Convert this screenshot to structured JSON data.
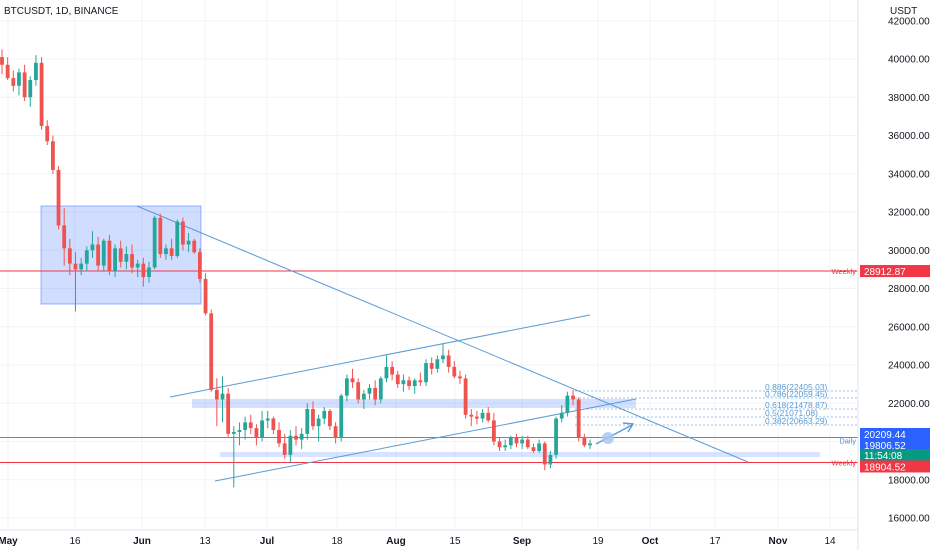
{
  "header": {
    "symbol": "BTCUSDT, 1D, BINANCE",
    "currency": "USDT"
  },
  "colors": {
    "up": "#26a69a",
    "down": "#ef5350",
    "line": "#5b9bd5",
    "box": "#2962ff",
    "red_line": "#f23645",
    "green_tag": "#089981",
    "blue_tag": "#2962ff"
  },
  "chart_data": {
    "type": "candlestick",
    "ylim": [
      15000,
      42800
    ],
    "x_labels": [
      "May",
      "16",
      "Jun",
      "13",
      "Jul",
      "18",
      "Aug",
      "15",
      "Sep",
      "19",
      "Oct",
      "17",
      "Nov",
      "14"
    ],
    "y_ticks": [
      "42000.00",
      "40000.00",
      "38000.00",
      "36000.00",
      "34000.00",
      "32000.00",
      "30000.00",
      "28000.00",
      "26000.00",
      "24000.00",
      "22000.00",
      "20000.00",
      "18000.00",
      "16000.00"
    ],
    "levels": [
      {
        "label": "Weekly",
        "value": "28912.87",
        "price": 28912.87
      },
      {
        "label": "Weekly",
        "value": "18904.52",
        "price": 18904.52
      },
      {
        "label": "Daily",
        "value": "20209.44",
        "price": 20209.44
      }
    ],
    "price_tags": {
      "current": "19806.52",
      "countdown": "11:54:08"
    },
    "fib_levels": [
      "0.886(22405.03)",
      "0.786(22059.45)",
      "0.618(21478.87)",
      "0.5(21071.08)",
      "0.382(20663.29)"
    ],
    "candles": [
      [
        40100,
        40500,
        39200,
        39700
      ],
      [
        39700,
        40100,
        38900,
        39000
      ],
      [
        39000,
        39400,
        38300,
        38600
      ],
      [
        38600,
        39500,
        38100,
        39300
      ],
      [
        39300,
        39700,
        37800,
        38000
      ],
      [
        38000,
        39100,
        37500,
        38900
      ],
      [
        38900,
        40200,
        38600,
        39800
      ],
      [
        39800,
        40100,
        36300,
        36500
      ],
      [
        36500,
        36800,
        35500,
        35700
      ],
      [
        35700,
        36000,
        34000,
        34200
      ],
      [
        34200,
        34400,
        31100,
        31300
      ],
      [
        31300,
        32200,
        29200,
        30100
      ],
      [
        30100,
        30600,
        28700,
        29300
      ],
      [
        29300,
        29900,
        26800,
        29000
      ],
      [
        29000,
        29600,
        28700,
        29300
      ],
      [
        29300,
        30200,
        28900,
        30000
      ],
      [
        30000,
        31000,
        29600,
        30300
      ],
      [
        30300,
        30700,
        28900,
        29200
      ],
      [
        29200,
        30600,
        28900,
        30500
      ],
      [
        30500,
        30800,
        28700,
        28900
      ],
      [
        28900,
        30300,
        28600,
        30100
      ],
      [
        30100,
        30500,
        29100,
        29400
      ],
      [
        29400,
        30200,
        29000,
        29800
      ],
      [
        29800,
        30300,
        28800,
        29100
      ],
      [
        29100,
        29500,
        28600,
        29300
      ],
      [
        29300,
        29600,
        28100,
        28600
      ],
      [
        28600,
        29400,
        28300,
        29100
      ],
      [
        29100,
        31800,
        29000,
        31700
      ],
      [
        31700,
        31900,
        29600,
        29800
      ],
      [
        29800,
        30300,
        29500,
        30100
      ],
      [
        30100,
        30600,
        29500,
        29700
      ],
      [
        29700,
        31600,
        29600,
        31500
      ],
      [
        31500,
        31700,
        30000,
        30300
      ],
      [
        30300,
        30900,
        29900,
        30500
      ],
      [
        30500,
        30600,
        29800,
        29900
      ],
      [
        29900,
        30100,
        28300,
        28500
      ],
      [
        28500,
        28800,
        26600,
        26700
      ],
      [
        26700,
        26900,
        22600,
        22700
      ],
      [
        22700,
        23300,
        20800,
        22200
      ],
      [
        22200,
        23400,
        21000,
        22500
      ],
      [
        22500,
        22800,
        20200,
        20400
      ],
      [
        20400,
        20800,
        17600,
        20500
      ],
      [
        20500,
        21000,
        19800,
        20600
      ],
      [
        20600,
        21300,
        20100,
        21000
      ],
      [
        21000,
        21400,
        20400,
        20700
      ],
      [
        20700,
        20900,
        19800,
        20200
      ],
      [
        20200,
        21600,
        20000,
        21100
      ],
      [
        21100,
        21600,
        20700,
        21200
      ],
      [
        21200,
        21300,
        20400,
        20600
      ],
      [
        20600,
        21000,
        19700,
        19900
      ],
      [
        19900,
        20400,
        19100,
        19300
      ],
      [
        19300,
        20600,
        18900,
        20300
      ],
      [
        20300,
        20800,
        19800,
        20100
      ],
      [
        20100,
        20700,
        19600,
        20400
      ],
      [
        20400,
        22000,
        20100,
        21700
      ],
      [
        21700,
        22100,
        20600,
        20800
      ],
      [
        20800,
        21400,
        20000,
        21200
      ],
      [
        21200,
        21800,
        20900,
        21600
      ],
      [
        21600,
        21700,
        20600,
        20800
      ],
      [
        20800,
        21000,
        19900,
        20200
      ],
      [
        20200,
        22500,
        20000,
        22400
      ],
      [
        22400,
        23500,
        22100,
        23300
      ],
      [
        23300,
        23800,
        22800,
        23100
      ],
      [
        23100,
        23300,
        22000,
        22200
      ],
      [
        22200,
        22700,
        21700,
        22500
      ],
      [
        22500,
        23000,
        22200,
        22800
      ],
      [
        22800,
        23200,
        21900,
        22200
      ],
      [
        22200,
        23400,
        22000,
        23300
      ],
      [
        23300,
        24500,
        23100,
        23900
      ],
      [
        23900,
        24200,
        23200,
        23500
      ],
      [
        23500,
        23700,
        22800,
        23000
      ],
      [
        23000,
        23500,
        22600,
        23200
      ],
      [
        23200,
        23400,
        22700,
        22900
      ],
      [
        22900,
        23300,
        22500,
        23200
      ],
      [
        23200,
        23600,
        22900,
        23100
      ],
      [
        23100,
        24300,
        22900,
        24100
      ],
      [
        24100,
        24400,
        23500,
        23800
      ],
      [
        23800,
        24500,
        23600,
        24300
      ],
      [
        24300,
        25100,
        24100,
        24500
      ],
      [
        24500,
        24800,
        23600,
        23900
      ],
      [
        23900,
        24200,
        23300,
        23400
      ],
      [
        23400,
        23700,
        23000,
        23300
      ],
      [
        23300,
        23500,
        21200,
        21400
      ],
      [
        21400,
        21700,
        20800,
        21300
      ],
      [
        21300,
        21600,
        20900,
        21200
      ],
      [
        21200,
        21700,
        21000,
        21500
      ],
      [
        21500,
        21800,
        21000,
        21100
      ],
      [
        21100,
        21500,
        19800,
        20000
      ],
      [
        20000,
        20200,
        19500,
        19700
      ],
      [
        19700,
        20100,
        19500,
        19800
      ],
      [
        19800,
        20300,
        19600,
        20200
      ],
      [
        20200,
        20400,
        19700,
        19900
      ],
      [
        19900,
        20300,
        19600,
        20100
      ],
      [
        20100,
        20300,
        19600,
        19700
      ],
      [
        19700,
        19900,
        19400,
        19500
      ],
      [
        19500,
        20100,
        19400,
        19900
      ],
      [
        19900,
        20000,
        18500,
        18800
      ],
      [
        18800,
        19500,
        18600,
        19300
      ],
      [
        19300,
        21300,
        19100,
        21200
      ],
      [
        21200,
        21900,
        21000,
        21500
      ],
      [
        21500,
        22600,
        21300,
        22400
      ],
      [
        22400,
        22700,
        21900,
        22200
      ],
      [
        22200,
        22300,
        20000,
        20200
      ],
      [
        20200,
        20400,
        19700,
        19800
      ],
      [
        19800,
        20100,
        19600,
        19900
      ]
    ]
  }
}
